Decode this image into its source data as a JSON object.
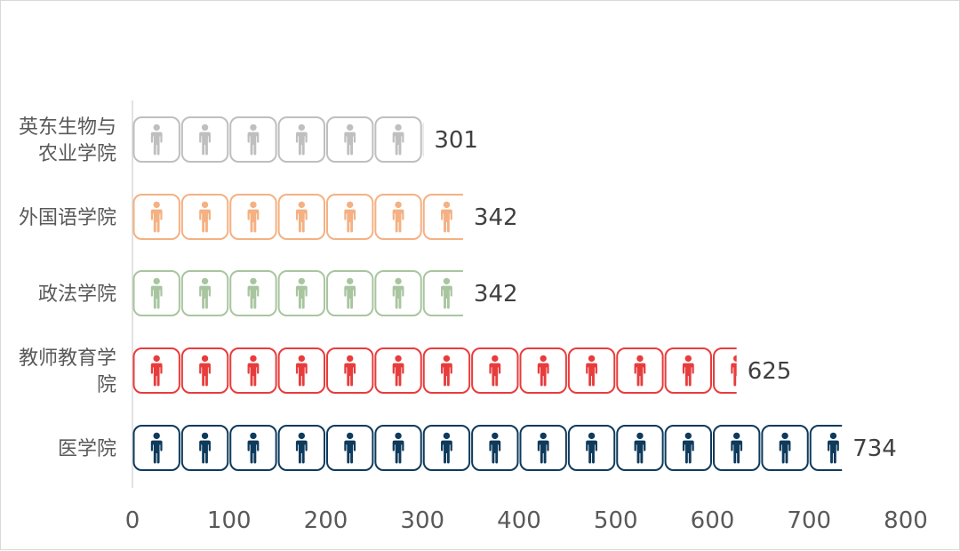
{
  "chart_data": {
    "type": "bar",
    "orientation": "horizontal",
    "categories": [
      "英东生物与农业学院",
      "外国语学院",
      "政法学院",
      "教师教育学院",
      "医学院"
    ],
    "category_lines": [
      [
        "英东生物与",
        "农业学院"
      ],
      [
        "外国语学院"
      ],
      [
        "政法学院"
      ],
      [
        "教师教育学",
        "院"
      ],
      [
        "医学院"
      ]
    ],
    "values": [
      301,
      342,
      342,
      625,
      734
    ],
    "colors": [
      "#bfbfbf",
      "#f4b183",
      "#a9c5a0",
      "#e83c3c",
      "#0e3a5c"
    ],
    "unit_per_icon": 50,
    "icon": "person-icon",
    "xlim": [
      0,
      800
    ],
    "xticks": [
      "0",
      "100",
      "200",
      "300",
      "400",
      "500",
      "600",
      "700",
      "800"
    ],
    "title": "",
    "xlabel": "",
    "ylabel": "",
    "grid": false,
    "legend": "none"
  }
}
